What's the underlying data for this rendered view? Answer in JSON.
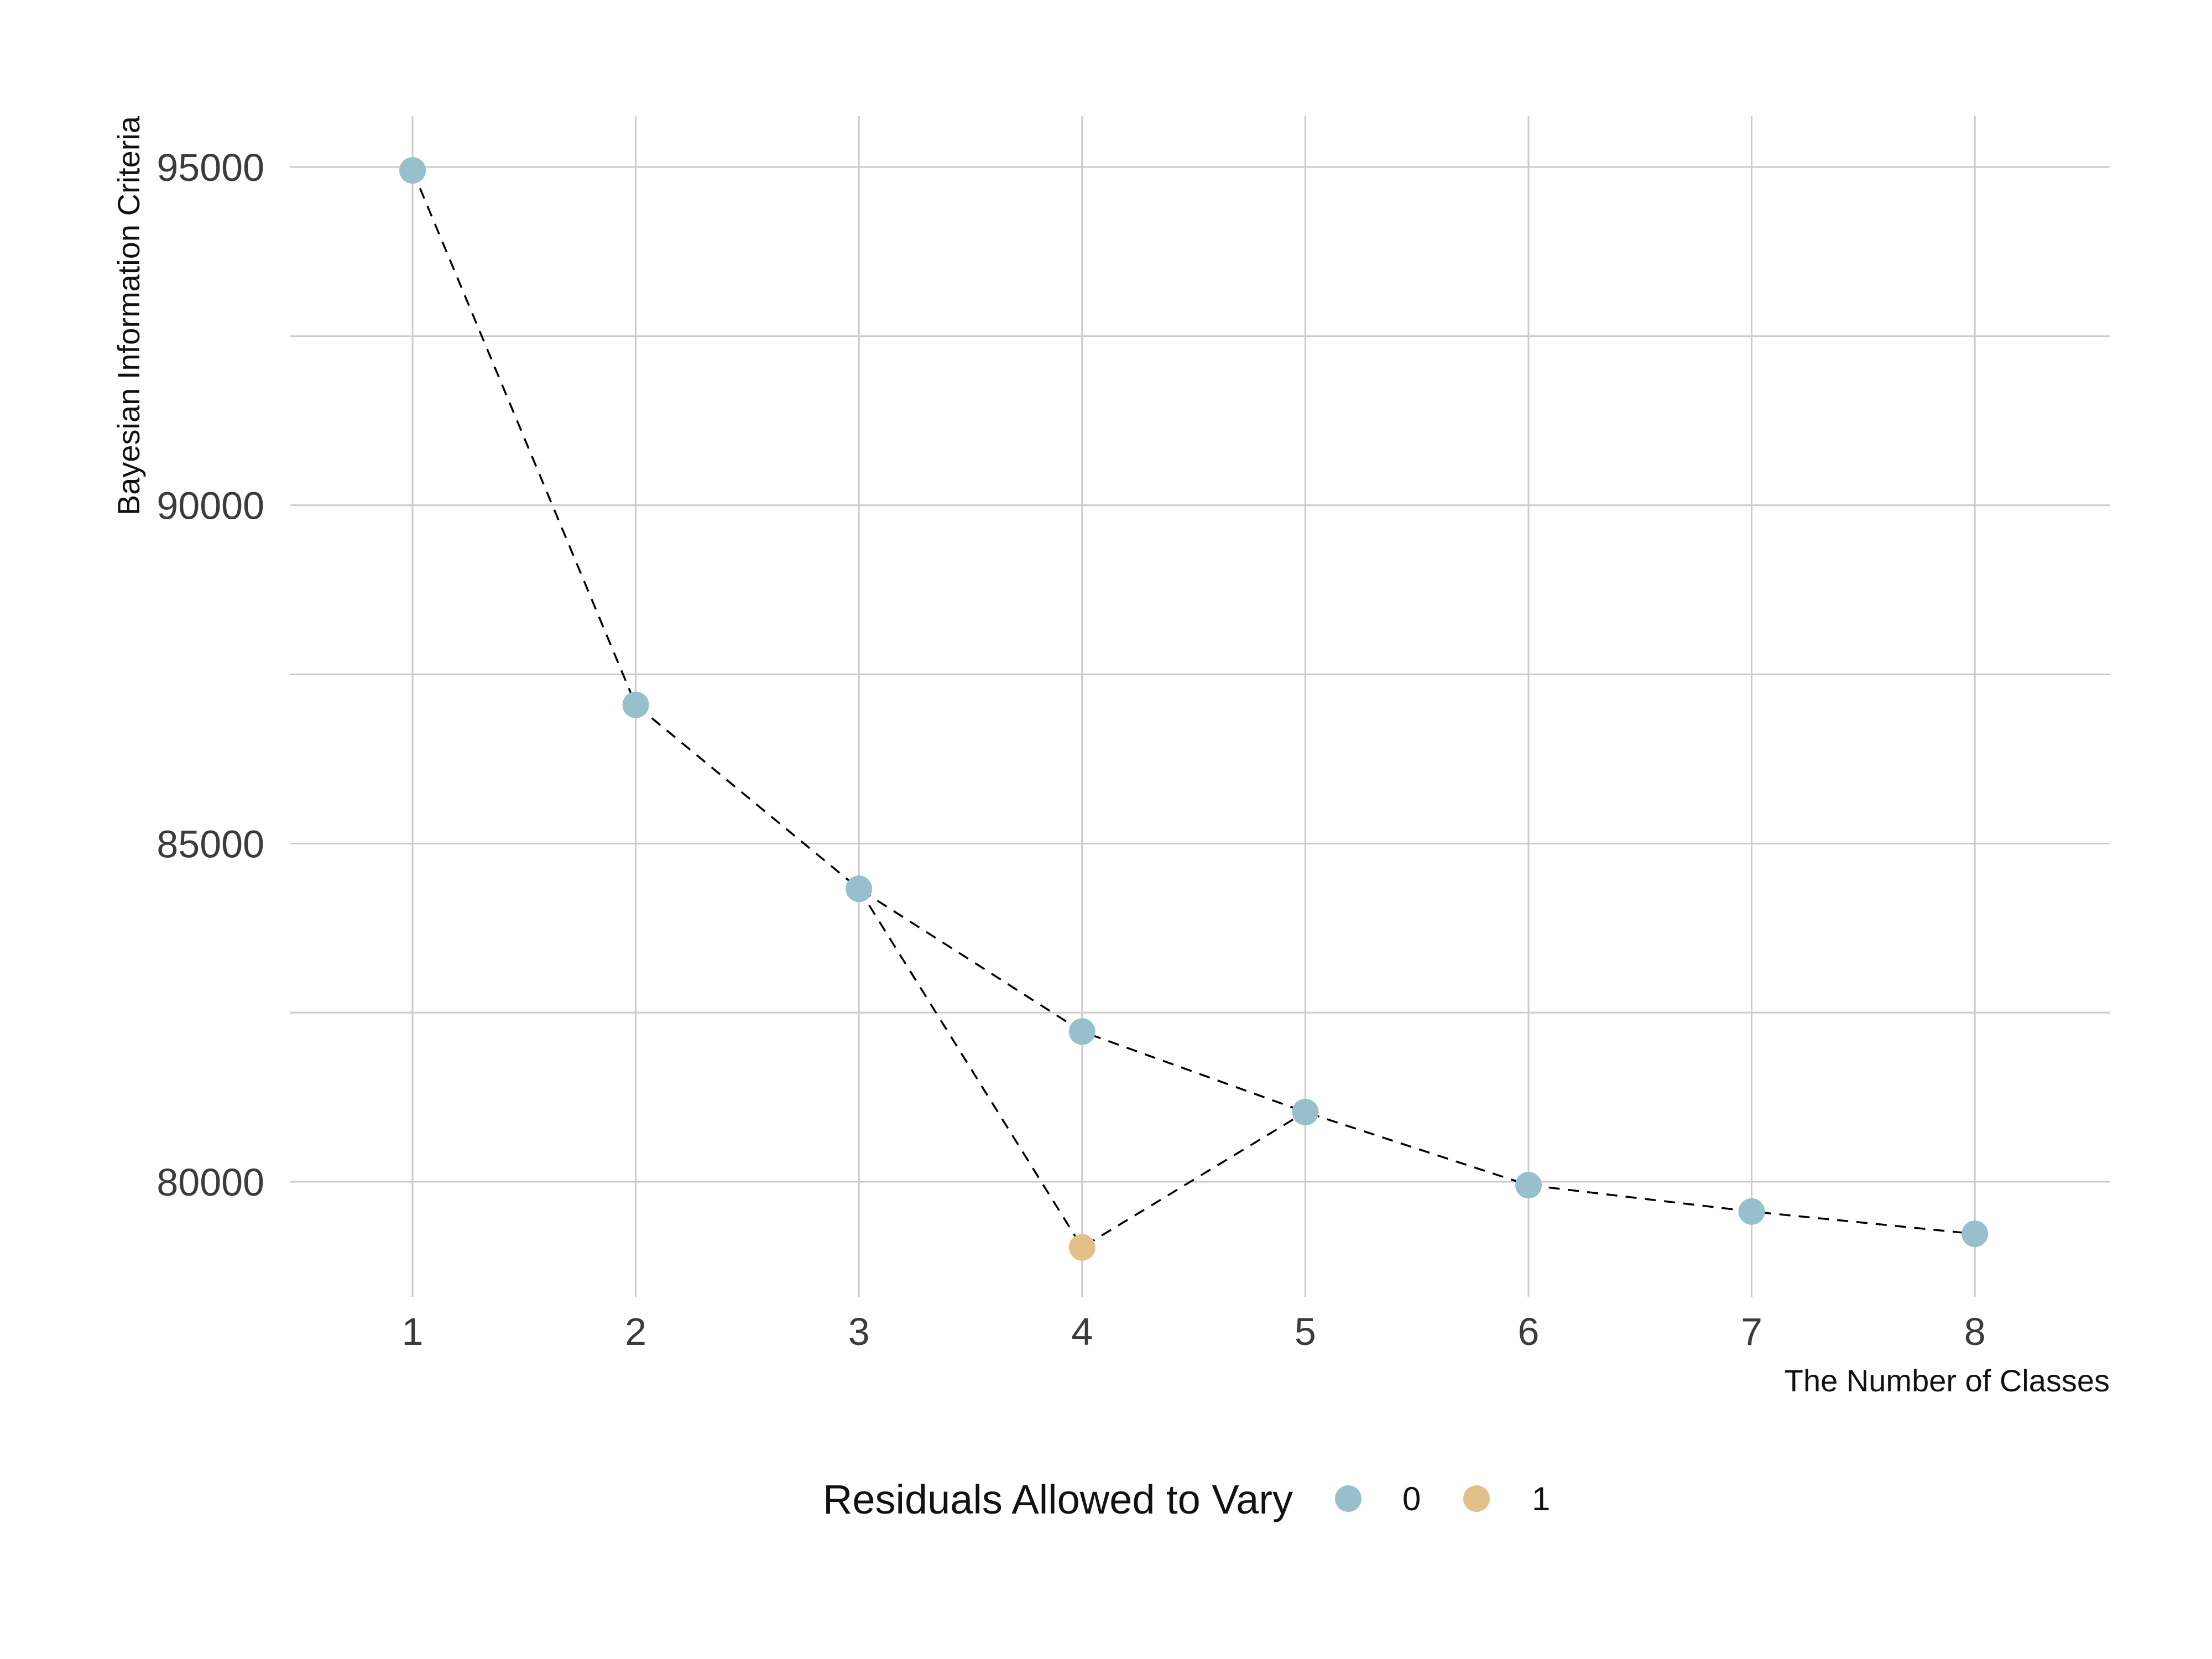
{
  "chart_data": {
    "type": "scatter",
    "title": "",
    "xlabel": "The Number of Classes",
    "ylabel": "Bayesian Information Criteria",
    "xlim": [
      0.5,
      8.6
    ],
    "ylim": [
      77900,
      95750
    ],
    "x_ticks": [
      1,
      2,
      3,
      4,
      5,
      6,
      7,
      8
    ],
    "x_tick_labels": [
      "1",
      "2",
      "3",
      "4",
      "5",
      "6",
      "7",
      "8"
    ],
    "y_ticks": [
      80000,
      85000,
      90000,
      95000
    ],
    "y_tick_labels": [
      "80000",
      "85000",
      "90000",
      "95000"
    ],
    "y_minor_gridlines": [
      82500,
      87500,
      92500
    ],
    "grid": true,
    "legend": {
      "title": "Residuals Allowed to Vary",
      "position": "bottom",
      "entries": [
        {
          "label": "0",
          "color": "#97bfcc"
        },
        {
          "label": "1",
          "color": "#e3c08a"
        }
      ]
    },
    "line_style": {
      "color": "#000000",
      "dash": "dashed"
    },
    "series": [
      {
        "name": "0",
        "color": "#97bfcc",
        "x": [
          1,
          2,
          3,
          4,
          5,
          6,
          7,
          8
        ],
        "y": [
          94950,
          87050,
          84330,
          82220,
          81030,
          79950,
          79560,
          79230
        ]
      },
      {
        "name": "1",
        "color": "#e3c08a",
        "x": [
          4
        ],
        "y": [
          79030
        ]
      }
    ],
    "connecting_lines": [
      {
        "x": [
          1,
          2,
          3,
          4,
          5,
          6,
          7,
          8
        ],
        "y": [
          94950,
          87050,
          84330,
          82220,
          81030,
          79950,
          79560,
          79230
        ]
      },
      {
        "x": [
          3,
          4,
          5
        ],
        "y": [
          84330,
          79030,
          81030
        ]
      }
    ]
  }
}
